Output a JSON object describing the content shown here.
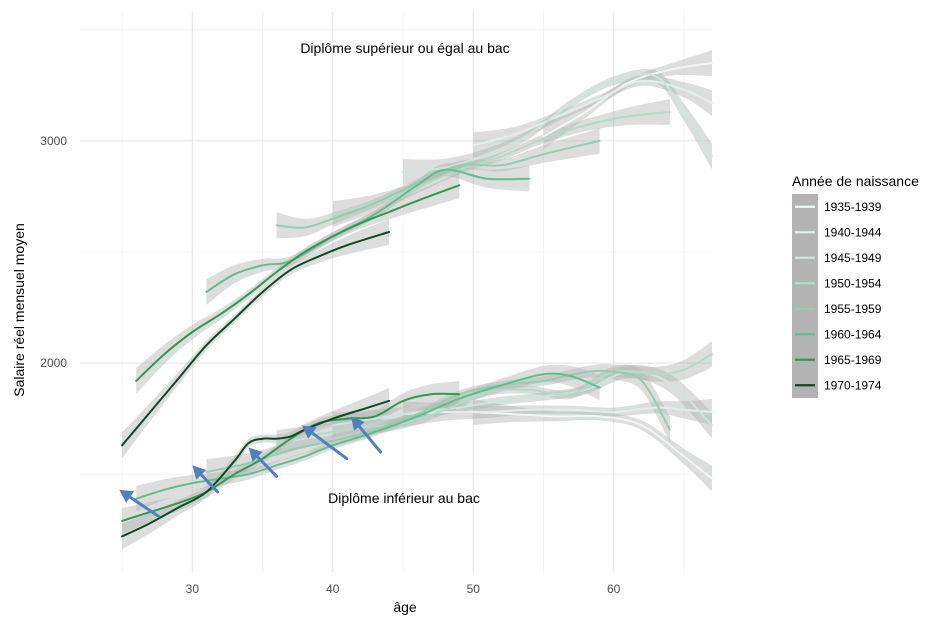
{
  "chart_data": {
    "type": "line",
    "xlabel": "âge",
    "ylabel": "Salaire réel mensuel  moyen",
    "xlim": [
      22,
      67
    ],
    "ylim": [
      1060,
      3580
    ],
    "x_ticks": [
      30,
      40,
      50,
      60
    ],
    "y_ticks": [
      2000,
      3000
    ],
    "grid": true,
    "legend_position": "right",
    "legend": {
      "title": "Année de naissance",
      "entries": [
        "1935-1939",
        "1940-1944",
        "1945-1949",
        "1950-1954",
        "1955-1959",
        "1960-1964",
        "1965-1969",
        "1970-1974"
      ]
    },
    "annotations": [
      {
        "text": "Diplôme supérieur ou égal au bac",
        "x": 46,
        "y": 3450
      },
      {
        "text": "Diplôme inférieur au bac",
        "x": 45,
        "y": 1460
      }
    ],
    "colors": [
      "#eef7f4",
      "#dff0ea",
      "#c9e7dd",
      "#b0ddca",
      "#8fd0b0",
      "#5fbf8c",
      "#2f9a55",
      "#0d4a25"
    ],
    "series": [
      {
        "name": "1935-1939",
        "group": "bac+",
        "x": [
          55,
          58,
          61,
          64,
          67
        ],
        "y": [
          3020,
          3130,
          3260,
          3320,
          3350
        ]
      },
      {
        "name": "1940-1944",
        "group": "bac+",
        "x": [
          50,
          53,
          56,
          59,
          62,
          65,
          67
        ],
        "y": [
          2980,
          3030,
          3110,
          3190,
          3270,
          3230,
          3170
        ]
      },
      {
        "name": "1945-1949",
        "group": "bac+",
        "x": [
          45,
          48,
          51,
          54,
          57,
          60,
          63,
          65,
          67
        ],
        "y": [
          2860,
          2880,
          2940,
          3030,
          3170,
          3270,
          3290,
          3130,
          2930
        ]
      },
      {
        "name": "1950-1954",
        "group": "bac+",
        "x": [
          40,
          43,
          46,
          49,
          52,
          55,
          58,
          61,
          64
        ],
        "y": [
          2670,
          2720,
          2790,
          2870,
          2930,
          3010,
          3070,
          3110,
          3130
        ]
      },
      {
        "name": "1955-1959",
        "group": "bac+",
        "x": [
          36,
          38,
          40,
          43,
          46,
          49,
          52,
          55,
          59
        ],
        "y": [
          2620,
          2610,
          2650,
          2720,
          2810,
          2890,
          2890,
          2940,
          3000
        ]
      },
      {
        "name": "1960-1964",
        "group": "bac+",
        "x": [
          31,
          33,
          35,
          37,
          40,
          43,
          46,
          48,
          51,
          54
        ],
        "y": [
          2320,
          2400,
          2440,
          2460,
          2570,
          2670,
          2800,
          2870,
          2830,
          2830
        ]
      },
      {
        "name": "1965-1969",
        "group": "bac+",
        "x": [
          26,
          28,
          30,
          32,
          34,
          36,
          38,
          40,
          42,
          44,
          46,
          49
        ],
        "y": [
          1920,
          2040,
          2140,
          2220,
          2310,
          2410,
          2500,
          2570,
          2630,
          2680,
          2730,
          2800
        ]
      },
      {
        "name": "1970-1974",
        "group": "bac+",
        "x": [
          25,
          27,
          29,
          31,
          33,
          35,
          37,
          39,
          41,
          44
        ],
        "y": [
          1630,
          1780,
          1930,
          2080,
          2200,
          2320,
          2420,
          2480,
          2530,
          2590
        ]
      },
      {
        "name": "1935-1939",
        "group": "bac-",
        "x": [
          50,
          53,
          56,
          59,
          62,
          65,
          67
        ],
        "y": [
          1780,
          1770,
          1760,
          1760,
          1720,
          1580,
          1480
        ]
      },
      {
        "name": "1940-1944",
        "group": "bac-",
        "x": [
          45,
          48,
          51,
          54,
          57,
          60,
          63,
          65,
          67
        ],
        "y": [
          1770,
          1780,
          1780,
          1790,
          1790,
          1780,
          1800,
          1790,
          1780
        ]
      },
      {
        "name": "1945-1949",
        "group": "bac-",
        "x": [
          40,
          43,
          46,
          49,
          52,
          55,
          58,
          61,
          64,
          67
        ],
        "y": [
          1720,
          1750,
          1780,
          1800,
          1830,
          1850,
          1880,
          1960,
          1910,
          1720
        ]
      },
      {
        "name": "1950-1954",
        "group": "bac-",
        "x": [
          36,
          39,
          42,
          45,
          48,
          51,
          54,
          57,
          60,
          63,
          65,
          67
        ],
        "y": [
          1640,
          1680,
          1710,
          1730,
          1790,
          1870,
          1880,
          1860,
          1960,
          1950,
          1970,
          2040
        ]
      },
      {
        "name": "1955-1959",
        "group": "bac-",
        "x": [
          31,
          34,
          37,
          40,
          43,
          46,
          49,
          52,
          55,
          58,
          60,
          62,
          64
        ],
        "y": [
          1510,
          1550,
          1610,
          1650,
          1700,
          1770,
          1860,
          1900,
          1920,
          1960,
          1960,
          1920,
          1700
        ]
      },
      {
        "name": "1960-1964",
        "group": "bac-",
        "x": [
          26,
          28,
          30,
          32,
          34,
          36,
          38,
          40,
          43,
          46,
          49,
          52,
          55,
          57,
          59
        ],
        "y": [
          1390,
          1430,
          1460,
          1480,
          1500,
          1540,
          1580,
          1630,
          1690,
          1760,
          1840,
          1900,
          1950,
          1940,
          1890
        ]
      },
      {
        "name": "1965-1969",
        "group": "bac-",
        "x": [
          25,
          27,
          29,
          31,
          33,
          35,
          37,
          39,
          41,
          43,
          45,
          47,
          49
        ],
        "y": [
          1290,
          1330,
          1370,
          1420,
          1500,
          1570,
          1660,
          1730,
          1750,
          1760,
          1830,
          1860,
          1860
        ]
      },
      {
        "name": "1970-1974",
        "group": "bac-",
        "x": [
          25,
          27,
          29,
          31,
          33,
          34,
          35,
          36,
          37,
          38,
          40,
          42,
          44
        ],
        "y": [
          1220,
          1280,
          1350,
          1420,
          1560,
          1640,
          1660,
          1660,
          1670,
          1700,
          1750,
          1790,
          1830
        ]
      }
    ],
    "arrows": [
      {
        "from": [
          27.6,
          1310
        ],
        "to": [
          24.8,
          1430
        ]
      },
      {
        "from": [
          31.8,
          1420
        ],
        "to": [
          30.0,
          1540
        ]
      },
      {
        "from": [
          36.0,
          1490
        ],
        "to": [
          34.0,
          1620
        ]
      },
      {
        "from": [
          41.0,
          1570
        ],
        "to": [
          37.8,
          1720
        ]
      },
      {
        "from": [
          43.4,
          1600
        ],
        "to": [
          41.3,
          1760
        ]
      }
    ]
  }
}
